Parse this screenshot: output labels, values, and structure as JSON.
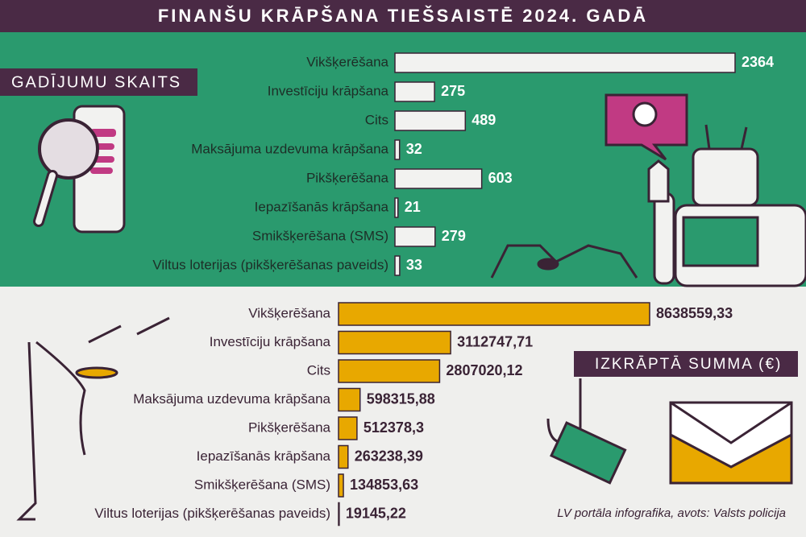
{
  "title": "FINANŠU KRĀPŠANA TIEŠSAISTĒ 2024. GADĀ",
  "chart_data": [
    {
      "type": "bar",
      "orientation": "horizontal",
      "title": "GADĪJUMU SKAITS",
      "categories": [
        "Vikšķerēšana",
        "Investīciju krāpšana",
        "Cits",
        "Maksājuma uzdevuma krāpšana",
        "Pikšķerēšana",
        "Iepazīšanās krāpšana",
        "Smikšķerēšana (SMS)",
        "Viltus loterijas (pikšķerēšanas paveids)"
      ],
      "values": [
        2364,
        275,
        489,
        32,
        603,
        21,
        279,
        33
      ],
      "color": "#f2f2f0"
    },
    {
      "type": "bar",
      "orientation": "horizontal",
      "title": "IZKRĀPTĀ SUMMA (€)",
      "categories": [
        "Vikšķerēšana",
        "Investīciju krāpšana",
        "Cits",
        "Maksājuma uzdevuma krāpšana",
        "Pikšķerēšana",
        "Iepazīšanās krāpšana",
        "Smikšķerēšana (SMS)",
        "Viltus loterijas (pikšķerēšanas paveids)"
      ],
      "values": [
        8638559.33,
        3112747.71,
        2807020.12,
        598315.88,
        512378.3,
        263238.39,
        134853.63,
        19145.22
      ],
      "value_labels": [
        "8638559,33",
        "3112747,71",
        "2807020,12",
        "598315,88",
        "512378,3",
        "263238,39",
        "134853,63",
        "19145,22"
      ],
      "color": "#e8a800"
    }
  ],
  "source": "LV portāla infografika, avots: Valsts policija"
}
